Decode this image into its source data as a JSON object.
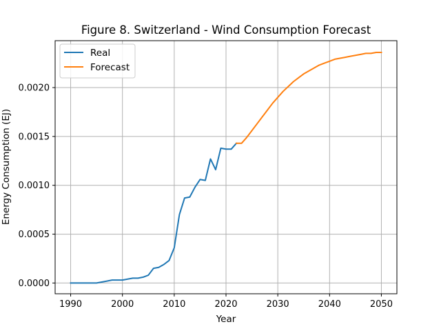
{
  "chart_data": {
    "type": "line",
    "title": "Figure 8. Switzerland - Wind Consumption Forecast",
    "xlabel": "Year",
    "ylabel": "Energy Consumption (EJ)",
    "xlim": [
      1987,
      2053
    ],
    "ylim": [
      -0.00011,
      0.00248
    ],
    "grid": true,
    "legend_position": "top-left",
    "x_ticks": [
      {
        "value": 1990,
        "label": "1990"
      },
      {
        "value": 2000,
        "label": "2000"
      },
      {
        "value": 2010,
        "label": "2010"
      },
      {
        "value": 2020,
        "label": "2020"
      },
      {
        "value": 2030,
        "label": "2030"
      },
      {
        "value": 2040,
        "label": "2040"
      },
      {
        "value": 2050,
        "label": "2050"
      }
    ],
    "y_ticks": [
      {
        "value": 0.0,
        "label": "0.0000"
      },
      {
        "value": 0.0005,
        "label": "0.0005"
      },
      {
        "value": 0.001,
        "label": "0.0010"
      },
      {
        "value": 0.0015,
        "label": "0.0015"
      },
      {
        "value": 0.002,
        "label": "0.0020"
      }
    ],
    "series": [
      {
        "name": "Real",
        "color": "#1f77b4",
        "points": [
          [
            1990,
            0.0
          ],
          [
            1991,
            0.0
          ],
          [
            1992,
            0.0
          ],
          [
            1993,
            0.0
          ],
          [
            1994,
            0.0
          ],
          [
            1995,
            0.0
          ],
          [
            1996,
            1e-05
          ],
          [
            1997,
            2e-05
          ],
          [
            1998,
            3e-05
          ],
          [
            1999,
            3e-05
          ],
          [
            2000,
            3e-05
          ],
          [
            2001,
            4e-05
          ],
          [
            2002,
            5e-05
          ],
          [
            2003,
            5e-05
          ],
          [
            2004,
            6e-05
          ],
          [
            2005,
            8e-05
          ],
          [
            2006,
            0.00015
          ],
          [
            2007,
            0.00016
          ],
          [
            2008,
            0.00019
          ],
          [
            2009,
            0.00023
          ],
          [
            2010,
            0.00036
          ],
          [
            2011,
            0.0007
          ],
          [
            2012,
            0.00087
          ],
          [
            2013,
            0.00088
          ],
          [
            2014,
            0.00098
          ],
          [
            2015,
            0.00106
          ],
          [
            2016,
            0.00105
          ],
          [
            2017,
            0.00127
          ],
          [
            2018,
            0.00116
          ],
          [
            2019,
            0.00138
          ],
          [
            2020,
            0.00137
          ],
          [
            2021,
            0.00137
          ],
          [
            2022,
            0.00143
          ]
        ]
      },
      {
        "name": "Forecast",
        "color": "#ff7f0e",
        "points": [
          [
            2022,
            0.00143
          ],
          [
            2023,
            0.00143
          ],
          [
            2024,
            0.00149
          ],
          [
            2025,
            0.00156
          ],
          [
            2026,
            0.00163
          ],
          [
            2027,
            0.0017
          ],
          [
            2028,
            0.00177
          ],
          [
            2029,
            0.00184
          ],
          [
            2030,
            0.0019
          ],
          [
            2031,
            0.00196
          ],
          [
            2032,
            0.00201
          ],
          [
            2033,
            0.00206
          ],
          [
            2034,
            0.0021
          ],
          [
            2035,
            0.00214
          ],
          [
            2036,
            0.00217
          ],
          [
            2037,
            0.0022
          ],
          [
            2038,
            0.00223
          ],
          [
            2039,
            0.00225
          ],
          [
            2040,
            0.00227
          ],
          [
            2041,
            0.00229
          ],
          [
            2042,
            0.0023
          ],
          [
            2043,
            0.00231
          ],
          [
            2044,
            0.00232
          ],
          [
            2045,
            0.00233
          ],
          [
            2046,
            0.00234
          ],
          [
            2047,
            0.00235
          ],
          [
            2048,
            0.00235
          ],
          [
            2049,
            0.00236
          ],
          [
            2050,
            0.00236
          ]
        ]
      }
    ]
  }
}
